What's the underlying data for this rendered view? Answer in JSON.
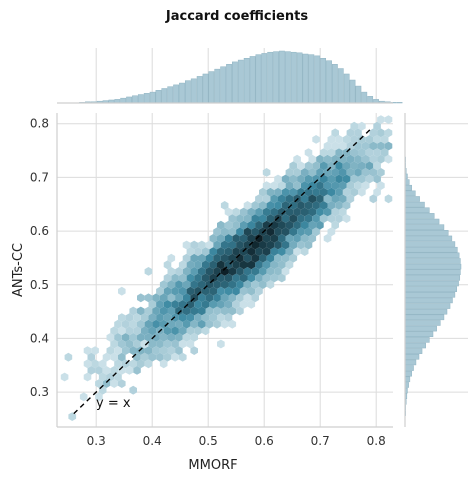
{
  "chart_data": {
    "type": "heatmap",
    "subtype": "hexbin joint plot with marginal histograms",
    "title": "Jaccard coefficients",
    "xlabel": "MMORF",
    "ylabel": "ANTs-CC",
    "xlim": [
      0.23,
      0.83
    ],
    "ylim": [
      0.235,
      0.82
    ],
    "xticks": [
      "0.3",
      "0.4",
      "0.5",
      "0.6",
      "0.7",
      "0.8"
    ],
    "yticks": [
      "0.3",
      "0.4",
      "0.5",
      "0.6",
      "0.7",
      "0.8"
    ],
    "grid": true,
    "reference_line": {
      "label": "y = x",
      "x": [
        0.26,
        0.79
      ],
      "y": [
        0.26,
        0.79
      ],
      "style": "dashed"
    },
    "joint_distribution": {
      "center_x": 0.575,
      "center_y": 0.565,
      "sd_x": 0.095,
      "sd_y": 0.085,
      "correlation": 0.92
    },
    "top_histogram": {
      "bin_start": 0.27,
      "bin_width": 0.0105,
      "counts": [
        1,
        2,
        2,
        3,
        4,
        5,
        6,
        8,
        10,
        12,
        14,
        16,
        18,
        21,
        24,
        27,
        30,
        33,
        37,
        40,
        44,
        48,
        52,
        56,
        60,
        64,
        68,
        71,
        74,
        77,
        80,
        82,
        84,
        85,
        86,
        85,
        84,
        83,
        81,
        80,
        78,
        74,
        70,
        64,
        57,
        48,
        38,
        28,
        18,
        11,
        6,
        3,
        2,
        1,
        1
      ]
    },
    "right_histogram": {
      "bin_start": 0.255,
      "bin_width": 0.0105,
      "counts": [
        1,
        1,
        2,
        3,
        4,
        6,
        8,
        11,
        14,
        18,
        23,
        28,
        34,
        40,
        46,
        52,
        58,
        64,
        69,
        74,
        78,
        82,
        85,
        88,
        90,
        91,
        92,
        91,
        89,
        86,
        82,
        77,
        71,
        64,
        56,
        48,
        40,
        32,
        24,
        17,
        11,
        7,
        4,
        2,
        1,
        1
      ]
    },
    "colors": {
      "hex_dark": "#0d1f26",
      "hex_mid": "#3d8aa3",
      "hex_light": "#e7f2f6",
      "histogram": "#a9c8d5",
      "grid": "#dcdcdc",
      "spine": "#cfcfcf"
    }
  }
}
